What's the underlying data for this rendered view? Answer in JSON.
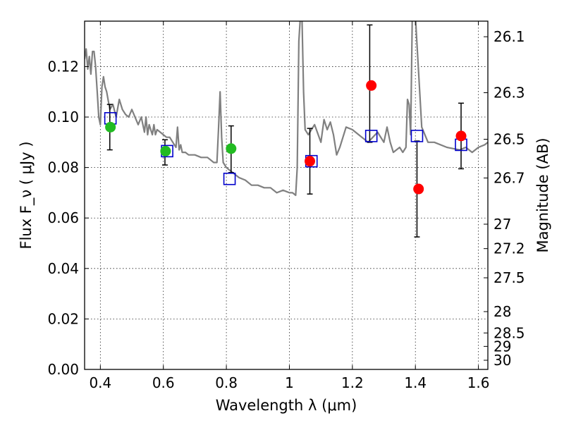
{
  "chart_data": {
    "type": "scatter",
    "xlabel": "Wavelength  λ (μm)",
    "ylabel": "Flux  F_ν  ( μJy )",
    "y2label": "Magnitude (AB)",
    "xlim": [
      0.35,
      1.63
    ],
    "ylim": [
      0.0,
      0.138
    ],
    "grid": true,
    "xticks": [
      0.4,
      0.6,
      0.8,
      1.0,
      1.2,
      1.4,
      1.6
    ],
    "xtick_labels": [
      "0.4",
      "0.6",
      "0.8",
      "1",
      "1.2",
      "1.4",
      "1.6"
    ],
    "yticks": [
      0.0,
      0.02,
      0.04,
      0.06,
      0.08,
      0.1,
      0.12
    ],
    "ytick_labels": [
      "0.00",
      "0.02",
      "0.04",
      "0.06",
      "0.08",
      "0.10",
      "0.12"
    ],
    "y2ticks": [
      "26.1",
      "26.3",
      "26.5",
      "26.7",
      "27",
      "27.2",
      "27.5",
      "28",
      "28.5",
      "29",
      "30"
    ],
    "series": [
      {
        "kind": "line",
        "color": "#808080",
        "x": [
          0.35,
          0.355,
          0.36,
          0.365,
          0.37,
          0.375,
          0.38,
          0.385,
          0.39,
          0.395,
          0.4,
          0.405,
          0.41,
          0.415,
          0.42,
          0.43,
          0.44,
          0.45,
          0.46,
          0.47,
          0.48,
          0.49,
          0.5,
          0.51,
          0.52,
          0.53,
          0.54,
          0.545,
          0.55,
          0.555,
          0.56,
          0.565,
          0.57,
          0.575,
          0.58,
          0.59,
          0.6,
          0.61,
          0.62,
          0.63,
          0.64,
          0.645,
          0.65,
          0.655,
          0.66,
          0.67,
          0.68,
          0.7,
          0.72,
          0.74,
          0.76,
          0.77,
          0.775,
          0.78,
          0.785,
          0.79,
          0.8,
          0.82,
          0.84,
          0.86,
          0.88,
          0.9,
          0.92,
          0.94,
          0.96,
          0.98,
          1.0,
          1.01,
          1.02,
          1.025,
          1.03,
          1.035,
          1.04,
          1.045,
          1.05,
          1.06,
          1.08,
          1.1,
          1.11,
          1.12,
          1.13,
          1.14,
          1.15,
          1.16,
          1.18,
          1.2,
          1.22,
          1.25,
          1.28,
          1.3,
          1.31,
          1.32,
          1.33,
          1.35,
          1.36,
          1.37,
          1.375,
          1.38,
          1.385,
          1.39,
          1.4,
          1.42,
          1.44,
          1.46,
          1.5,
          1.54,
          1.56,
          1.58,
          1.6,
          1.62,
          1.63
        ],
        "y": [
          0.123,
          0.127,
          0.119,
          0.124,
          0.117,
          0.126,
          0.126,
          0.12,
          0.11,
          0.1,
          0.097,
          0.112,
          0.116,
          0.112,
          0.11,
          0.103,
          0.105,
          0.1,
          0.107,
          0.103,
          0.101,
          0.1,
          0.103,
          0.1,
          0.097,
          0.1,
          0.094,
          0.1,
          0.093,
          0.097,
          0.095,
          0.093,
          0.097,
          0.093,
          0.095,
          0.094,
          0.093,
          0.092,
          0.092,
          0.09,
          0.088,
          0.096,
          0.087,
          0.089,
          0.086,
          0.086,
          0.085,
          0.085,
          0.084,
          0.084,
          0.082,
          0.082,
          0.095,
          0.11,
          0.092,
          0.082,
          0.08,
          0.078,
          0.076,
          0.075,
          0.073,
          0.073,
          0.072,
          0.072,
          0.07,
          0.071,
          0.07,
          0.07,
          0.069,
          0.08,
          0.13,
          0.14,
          0.14,
          0.11,
          0.095,
          0.093,
          0.097,
          0.09,
          0.099,
          0.095,
          0.098,
          0.093,
          0.085,
          0.088,
          0.096,
          0.095,
          0.093,
          0.09,
          0.094,
          0.09,
          0.096,
          0.09,
          0.086,
          0.088,
          0.086,
          0.088,
          0.107,
          0.105,
          0.093,
          0.14,
          0.14,
          0.096,
          0.09,
          0.09,
          0.088,
          0.087,
          0.088,
          0.086,
          0.088,
          0.089,
          0.09
        ]
      },
      {
        "kind": "errorbar",
        "color": "#000000",
        "x": [
          0.43,
          0.605,
          0.815,
          1.065,
          1.255,
          1.405,
          1.545
        ],
        "ylow": [
          0.087,
          0.081,
          0.078,
          0.0695,
          0.09,
          0.0525,
          0.0795
        ],
        "yhigh": [
          0.105,
          0.091,
          0.0965,
          0.0955,
          0.1365,
          0.0905,
          0.1055
        ]
      },
      {
        "kind": "scatter",
        "marker": "square",
        "color": "#0000cc",
        "x": [
          0.432,
          0.612,
          0.81,
          1.07,
          1.26,
          1.405,
          1.545
        ],
        "y": [
          0.0995,
          0.0865,
          0.0755,
          0.0825,
          0.0925,
          0.0925,
          0.089
        ]
      },
      {
        "kind": "scatter",
        "marker": "circle",
        "color": "#22bb22",
        "x": [
          0.432,
          0.607,
          0.815
        ],
        "y": [
          0.096,
          0.0865,
          0.0875
        ]
      },
      {
        "kind": "scatter",
        "marker": "circle",
        "color": "#ff0000",
        "x": [
          1.065,
          1.26,
          1.41,
          1.545
        ],
        "y": [
          0.0825,
          0.1125,
          0.0715,
          0.0925
        ]
      }
    ]
  }
}
